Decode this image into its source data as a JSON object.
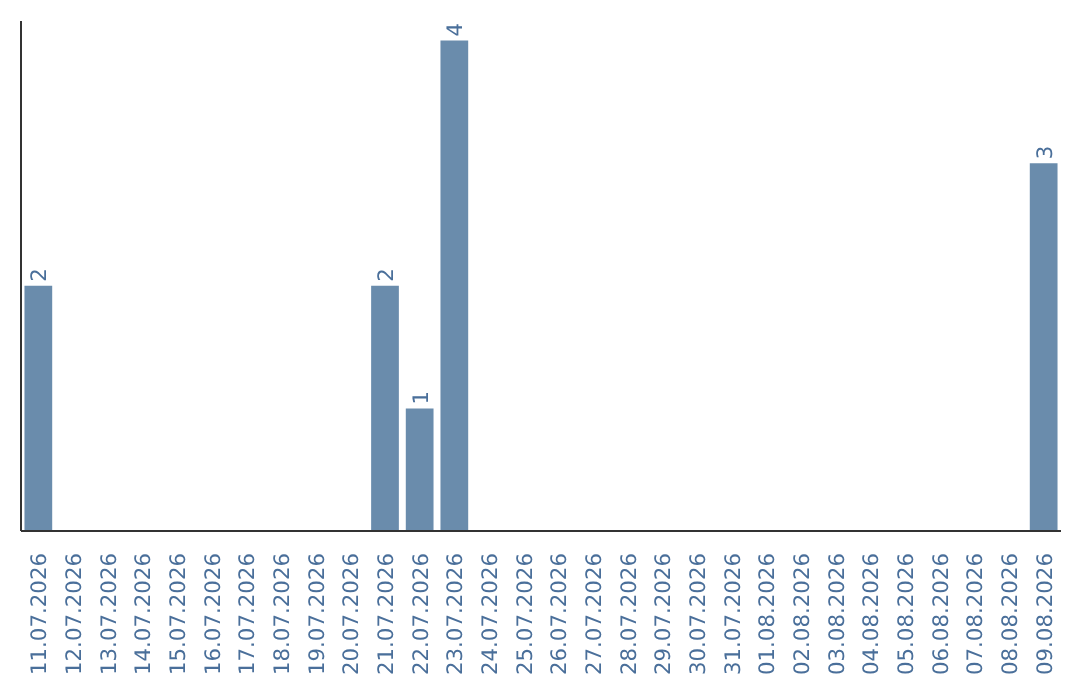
{
  "chart_data": {
    "type": "bar",
    "categories": [
      "11.07.2026",
      "12.07.2026",
      "13.07.2026",
      "14.07.2026",
      "15.07.2026",
      "16.07.2026",
      "17.07.2026",
      "18.07.2026",
      "19.07.2026",
      "20.07.2026",
      "21.07.2026",
      "22.07.2026",
      "23.07.2026",
      "24.07.2026",
      "25.07.2026",
      "26.07.2026",
      "27.07.2026",
      "28.07.2026",
      "29.07.2026",
      "30.07.2026",
      "31.07.2026",
      "01.08.2026",
      "02.08.2026",
      "03.08.2026",
      "04.08.2026",
      "05.08.2026",
      "06.08.2026",
      "07.08.2026",
      "08.08.2026",
      "09.08.2026"
    ],
    "values": [
      2,
      0,
      0,
      0,
      0,
      0,
      0,
      0,
      0,
      0,
      2,
      1,
      4,
      0,
      0,
      0,
      0,
      0,
      0,
      0,
      0,
      0,
      0,
      0,
      0,
      0,
      0,
      0,
      0,
      3
    ],
    "value_labels": [
      "2",
      null,
      null,
      null,
      null,
      null,
      null,
      null,
      null,
      null,
      "2",
      "1",
      "4",
      null,
      null,
      null,
      null,
      null,
      null,
      null,
      null,
      null,
      null,
      null,
      null,
      null,
      null,
      null,
      null,
      "3"
    ],
    "color": "#6a8cac",
    "grid": false
  }
}
